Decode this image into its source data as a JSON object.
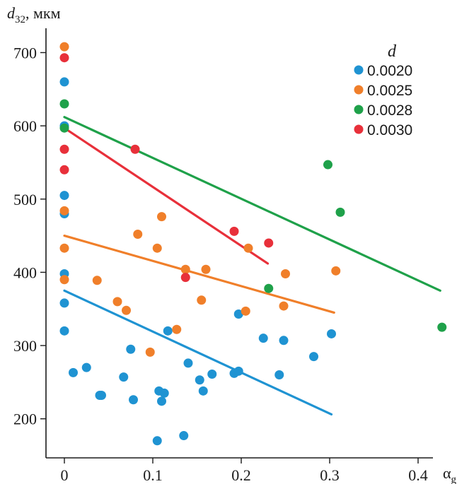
{
  "chart_data": {
    "type": "scatter",
    "title": "",
    "ylabel": {
      "base": "d",
      "sub": "32",
      "unit": ", мкм"
    },
    "xlabel": {
      "base": "α",
      "sub": "g"
    },
    "xlim": [
      -0.02,
      0.44
    ],
    "ylim": [
      140,
      750
    ],
    "xticks": [
      0,
      0.1,
      0.2,
      0.3,
      0.4
    ],
    "xtick_labels": [
      "0",
      "0.1",
      "0.2",
      "0.3",
      "0.4"
    ],
    "yticks": [
      200,
      300,
      400,
      500,
      600,
      700
    ],
    "ytick_labels": [
      "200",
      "300",
      "400",
      "500",
      "600",
      "700"
    ],
    "grid": false,
    "legend": {
      "title": "d",
      "position": "top-right"
    },
    "series": [
      {
        "name": "0.0020",
        "color": "#1f93d2",
        "points": [
          [
            0,
            660
          ],
          [
            0,
            600
          ],
          [
            0,
            505
          ],
          [
            0,
            480
          ],
          [
            0,
            398
          ],
          [
            0,
            358
          ],
          [
            0,
            320
          ],
          [
            0.01,
            263
          ],
          [
            0.025,
            270
          ],
          [
            0.04,
            232
          ],
          [
            0.042,
            232
          ],
          [
            0.067,
            257
          ],
          [
            0.075,
            295
          ],
          [
            0.078,
            226
          ],
          [
            0.105,
            170
          ],
          [
            0.107,
            238
          ],
          [
            0.11,
            224
          ],
          [
            0.113,
            235
          ],
          [
            0.117,
            320
          ],
          [
            0.14,
            276
          ],
          [
            0.135,
            177
          ],
          [
            0.153,
            253
          ],
          [
            0.157,
            238
          ],
          [
            0.167,
            261
          ],
          [
            0.192,
            262
          ],
          [
            0.197,
            265
          ],
          [
            0.197,
            343
          ],
          [
            0.225,
            310
          ],
          [
            0.243,
            260
          ],
          [
            0.248,
            307
          ],
          [
            0.282,
            285
          ],
          [
            0.302,
            316
          ]
        ],
        "trend": [
          [
            0,
            375
          ],
          [
            0.302,
            206
          ]
        ]
      },
      {
        "name": "0.0025",
        "color": "#f07f2a",
        "points": [
          [
            0,
            708
          ],
          [
            0,
            484
          ],
          [
            0,
            433
          ],
          [
            0,
            390
          ],
          [
            0.037,
            389
          ],
          [
            0.06,
            360
          ],
          [
            0.07,
            348
          ],
          [
            0.097,
            291
          ],
          [
            0.083,
            452
          ],
          [
            0.105,
            433
          ],
          [
            0.11,
            476
          ],
          [
            0.127,
            322
          ],
          [
            0.137,
            404
          ],
          [
            0.155,
            362
          ],
          [
            0.16,
            404
          ],
          [
            0.205,
            347
          ],
          [
            0.208,
            433
          ],
          [
            0.248,
            354
          ],
          [
            0.25,
            398
          ],
          [
            0.307,
            402
          ]
        ],
        "trend": [
          [
            0,
            450
          ],
          [
            0.305,
            345
          ]
        ]
      },
      {
        "name": "0.0028",
        "color": "#1fa14a",
        "points": [
          [
            0,
            630
          ],
          [
            0,
            597
          ],
          [
            0.231,
            378
          ],
          [
            0.298,
            547
          ],
          [
            0.312,
            482
          ],
          [
            0.427,
            325
          ]
        ],
        "trend": [
          [
            0,
            612
          ],
          [
            0.425,
            375
          ]
        ]
      },
      {
        "name": "0.0030",
        "color": "#e8303a",
        "points": [
          [
            0,
            693
          ],
          [
            0,
            568
          ],
          [
            0,
            540
          ],
          [
            0.08,
            568
          ],
          [
            0.137,
            393
          ],
          [
            0.192,
            456
          ],
          [
            0.231,
            440
          ]
        ],
        "trend": [
          [
            0,
            597
          ],
          [
            0.23,
            412
          ]
        ]
      }
    ]
  }
}
